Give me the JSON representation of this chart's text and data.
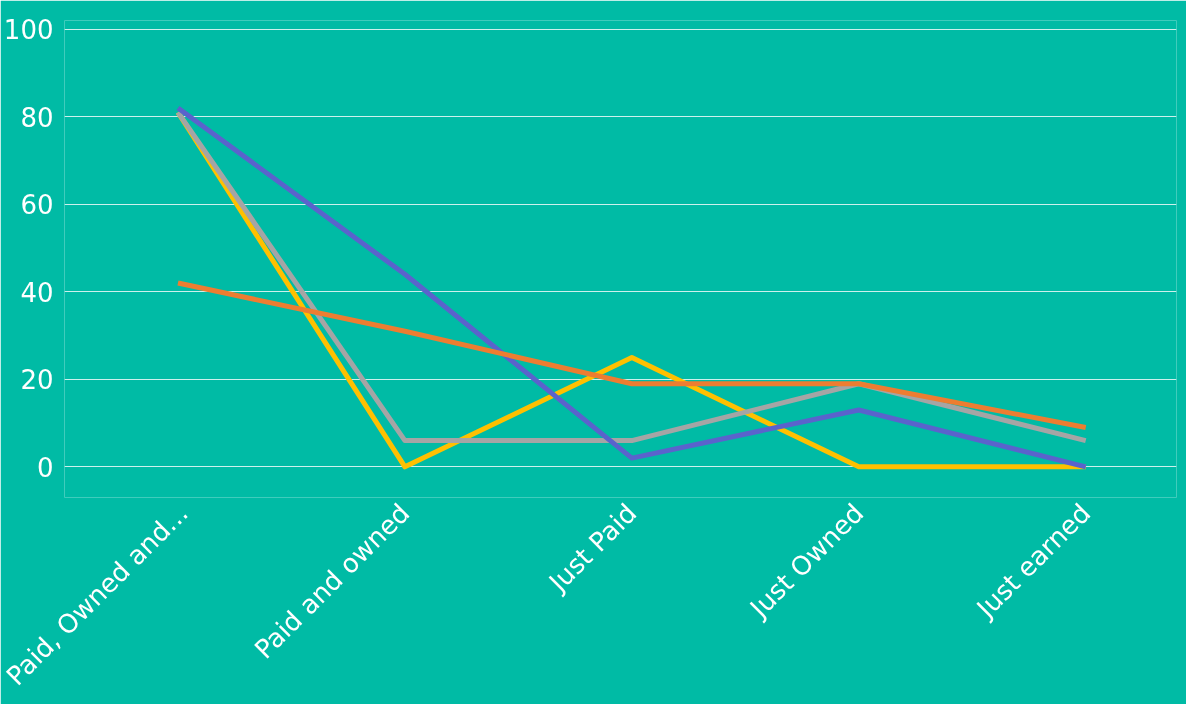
{
  "chart_data": {
    "type": "line",
    "categories": [
      "Paid, Owned and...",
      "Paid and owned",
      "Just Paid",
      "Just Owned",
      "Just earned"
    ],
    "series": [
      {
        "color": "#ffc000",
        "values": [
          81,
          0,
          25,
          0,
          0
        ]
      },
      {
        "color": "#a5a5a5",
        "values": [
          81,
          6,
          6,
          19,
          6
        ]
      },
      {
        "color": "#5a63cc",
        "values": [
          82,
          44,
          2,
          13,
          0
        ]
      },
      {
        "color": "#ed7d31",
        "values": [
          42,
          31,
          19,
          19,
          9
        ]
      }
    ],
    "ylim": [
      -7,
      102
    ],
    "yticks": [
      0,
      20,
      40,
      60,
      80,
      100
    ],
    "grid": "y",
    "marker": "none",
    "line_style": "solid"
  }
}
